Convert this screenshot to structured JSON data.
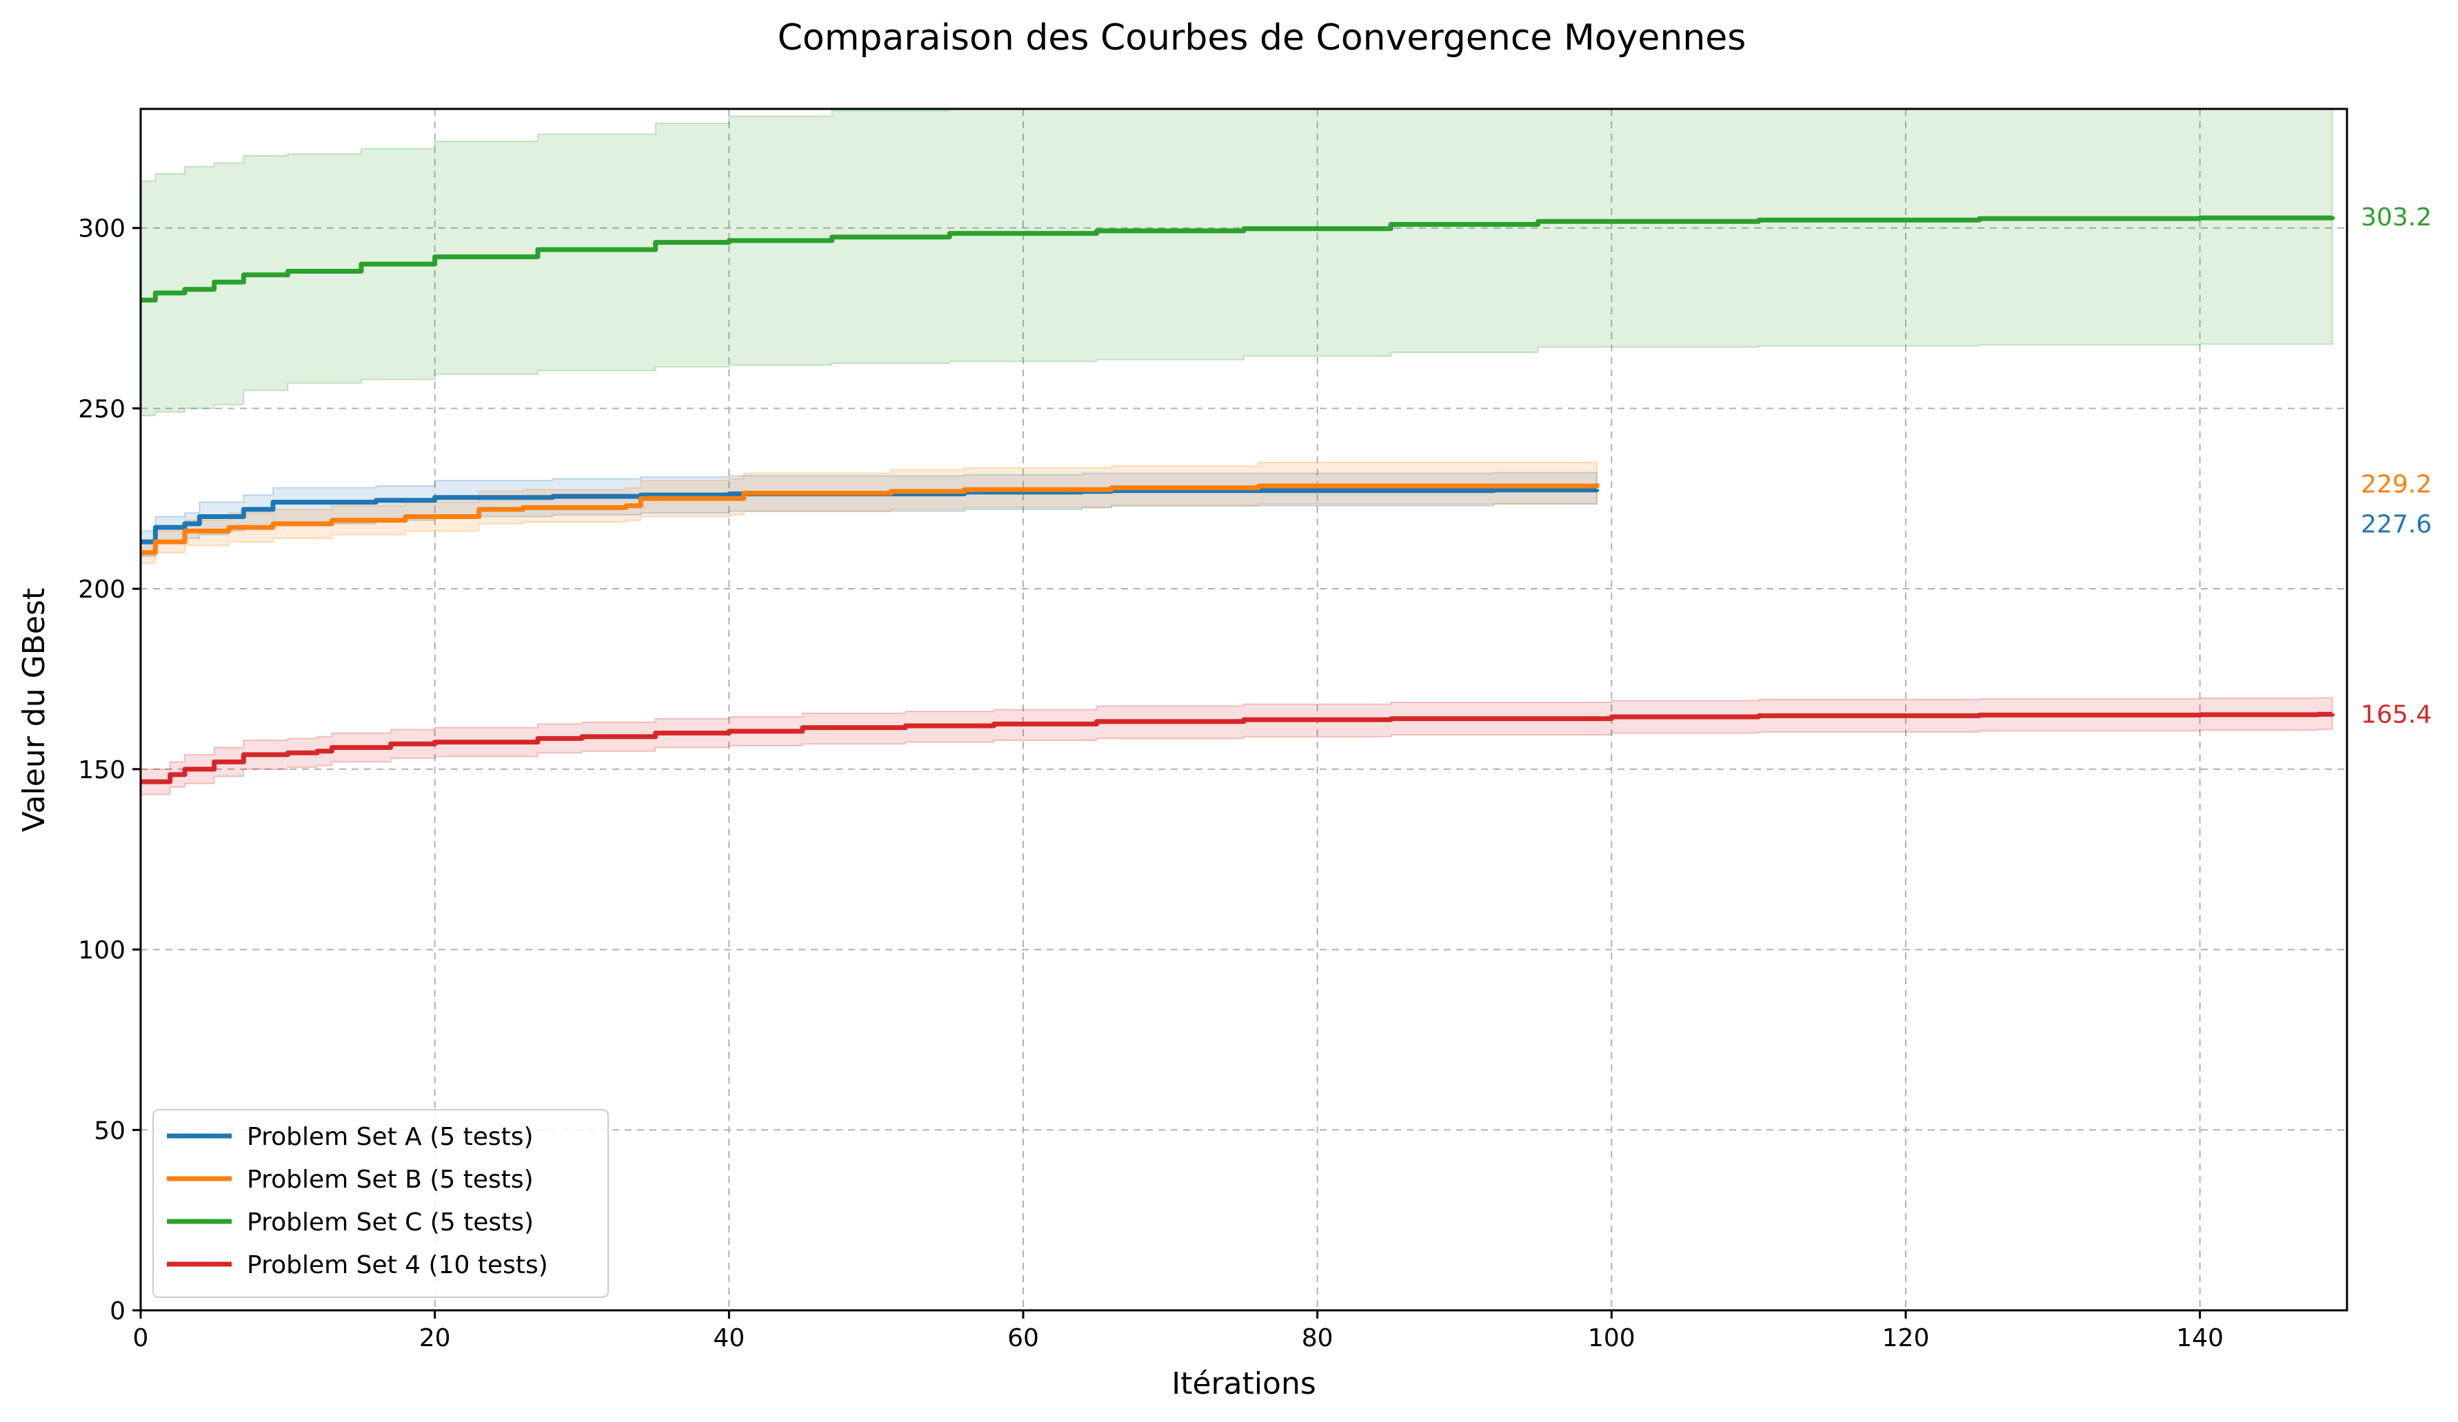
{
  "chart_data": {
    "type": "line",
    "title": "Comparaison des Courbes de Convergence Moyennes",
    "xlabel": "Itérations",
    "ylabel": "Valeur du GBest",
    "xlim": [
      0,
      150
    ],
    "ylim": [
      0,
      333
    ],
    "xticks": [
      "0",
      "20",
      "40",
      "60",
      "80",
      "100",
      "120",
      "140"
    ],
    "yticks": [
      "0",
      "50",
      "100",
      "150",
      "200",
      "250",
      "300"
    ],
    "grid": true,
    "legend_position": "lower-left",
    "series": [
      {
        "name": "Problem Set A (5 tests)",
        "color": "#1f77b4",
        "end_label": "227.6",
        "x": [
          0,
          1,
          3,
          4,
          6,
          7,
          9,
          16,
          20,
          28,
          34,
          40,
          56,
          64,
          66,
          92,
          99
        ],
        "mean": [
          213,
          217,
          218,
          220,
          220,
          222,
          224,
          224.5,
          225.3,
          225.6,
          226,
          226.3,
          226.8,
          227,
          227.2,
          227.4,
          227.6
        ],
        "lower": [
          209,
          213,
          214,
          215,
          216,
          217,
          218,
          219,
          220,
          220.5,
          221,
          221.5,
          222,
          222.5,
          223,
          223.5,
          224
        ],
        "upper": [
          216,
          220,
          221,
          224,
          224,
          226,
          228,
          228.5,
          230,
          230.5,
          231,
          231.3,
          231.6,
          232,
          232,
          232.2,
          232.4
        ]
      },
      {
        "name": "Problem Set B (5 tests)",
        "color": "#ff7f0e",
        "end_label": "229.2",
        "x": [
          0,
          1,
          3,
          6,
          9,
          13,
          18,
          21,
          23,
          26,
          33,
          34,
          40,
          41,
          51,
          56,
          66,
          76,
          99
        ],
        "mean": [
          210,
          213,
          216,
          217,
          218,
          219,
          220,
          220,
          222,
          222.5,
          223,
          225,
          225,
          226.5,
          227,
          227.5,
          228,
          228.5,
          229.2
        ],
        "lower": [
          207,
          210,
          212,
          213,
          214,
          215,
          216,
          216,
          218,
          218.5,
          219,
          220,
          220.5,
          221.5,
          222,
          222.5,
          223,
          223.5,
          224
        ],
        "upper": [
          213,
          216,
          219,
          221,
          222,
          223,
          224,
          224,
          227,
          227.5,
          228,
          230,
          230.5,
          232,
          233,
          233.5,
          234,
          235,
          235.5
        ]
      },
      {
        "name": "Problem Set C (5 tests)",
        "color": "#2ca02c",
        "end_label": "303.2",
        "x": [
          0,
          1,
          3,
          5,
          7,
          10,
          15,
          20,
          27,
          35,
          40,
          47,
          55,
          65,
          75,
          85,
          95,
          110,
          125,
          140,
          149
        ],
        "mean": [
          280,
          282,
          283,
          285,
          287,
          288,
          290,
          292,
          294,
          296,
          296.5,
          297.5,
          298.5,
          299.2,
          299.8,
          301,
          301.8,
          302.2,
          302.6,
          302.8,
          303.2
        ],
        "lower": [
          248,
          249,
          250,
          251,
          255,
          257,
          258,
          259.5,
          260.5,
          261.5,
          262,
          262.5,
          263,
          263.5,
          264.5,
          265.5,
          267,
          267.3,
          267.6,
          267.8,
          268
        ],
        "upper": [
          313,
          315,
          317,
          318,
          320,
          320.5,
          322,
          324,
          326,
          329,
          331,
          332.5,
          333,
          333,
          333,
          333,
          333,
          333,
          333,
          333,
          333
        ]
      },
      {
        "name": "Problem Set 4 (10 tests)",
        "color": "#d62728",
        "end_label": "165.4",
        "x": [
          0,
          2,
          3,
          5,
          7,
          10,
          12,
          13,
          17,
          20,
          27,
          30,
          35,
          40,
          45,
          52,
          58,
          65,
          75,
          85,
          100,
          110,
          125,
          140,
          148,
          149
        ],
        "mean": [
          146.5,
          148.5,
          150,
          152,
          154,
          154.5,
          155,
          156,
          157,
          157.5,
          158.5,
          159,
          160,
          160.5,
          161.5,
          162,
          162.5,
          163.2,
          163.7,
          164,
          164.5,
          164.8,
          165,
          165.1,
          165.2,
          165.4
        ],
        "lower": [
          143,
          145,
          146,
          148,
          150,
          150.5,
          151,
          152,
          153,
          153.5,
          154.5,
          155,
          156,
          156.5,
          157,
          157.5,
          158,
          158.5,
          159,
          159.5,
          160,
          160.3,
          160.6,
          160.8,
          161,
          161
        ],
        "upper": [
          150,
          152,
          154,
          156,
          158,
          158.5,
          159,
          160,
          161,
          161.5,
          162.5,
          163,
          164,
          164.5,
          165.5,
          166,
          166.5,
          167.5,
          168,
          168.5,
          169,
          169.3,
          169.5,
          169.7,
          169.8,
          170
        ]
      }
    ]
  }
}
